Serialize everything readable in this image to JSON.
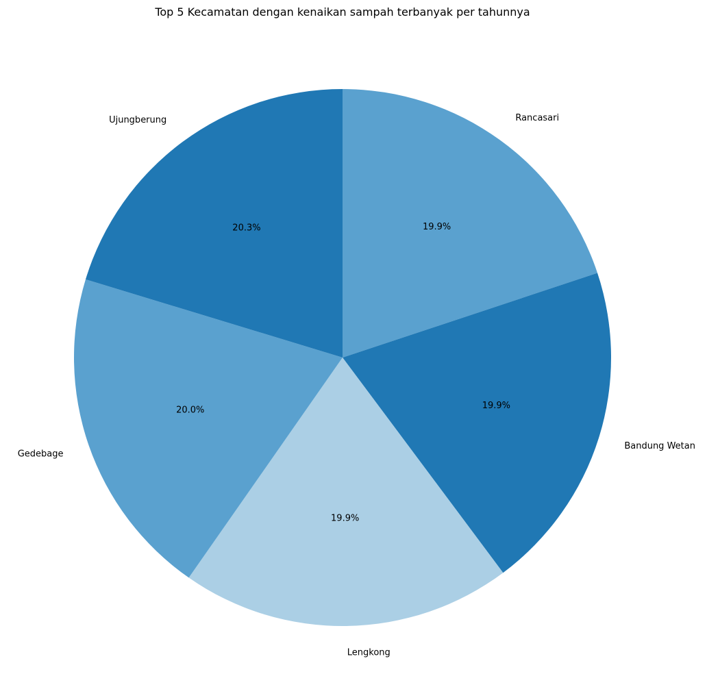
{
  "chart_data": {
    "type": "pie",
    "title": "Top 5 Kecamatan dengan kenaikan sampah terbanyak per tahunnya",
    "slices": [
      {
        "label": "Rancasari",
        "percent": 19.9,
        "percent_label": "19.9%",
        "color": "#5aa1cf"
      },
      {
        "label": "Bandung Wetan",
        "percent": 19.9,
        "percent_label": "19.9%",
        "color": "#2078b4"
      },
      {
        "label": "Lengkong",
        "percent": 19.9,
        "percent_label": "19.9%",
        "color": "#abcfe5"
      },
      {
        "label": "Gedebage",
        "percent": 20.0,
        "percent_label": "20.0%",
        "color": "#5aa1cf"
      },
      {
        "label": "Ujungberung",
        "percent": 20.3,
        "percent_label": "20.3%",
        "color": "#2078b4"
      }
    ],
    "start_angle_deg": 90,
    "direction": "clockwise",
    "legend": "none"
  }
}
